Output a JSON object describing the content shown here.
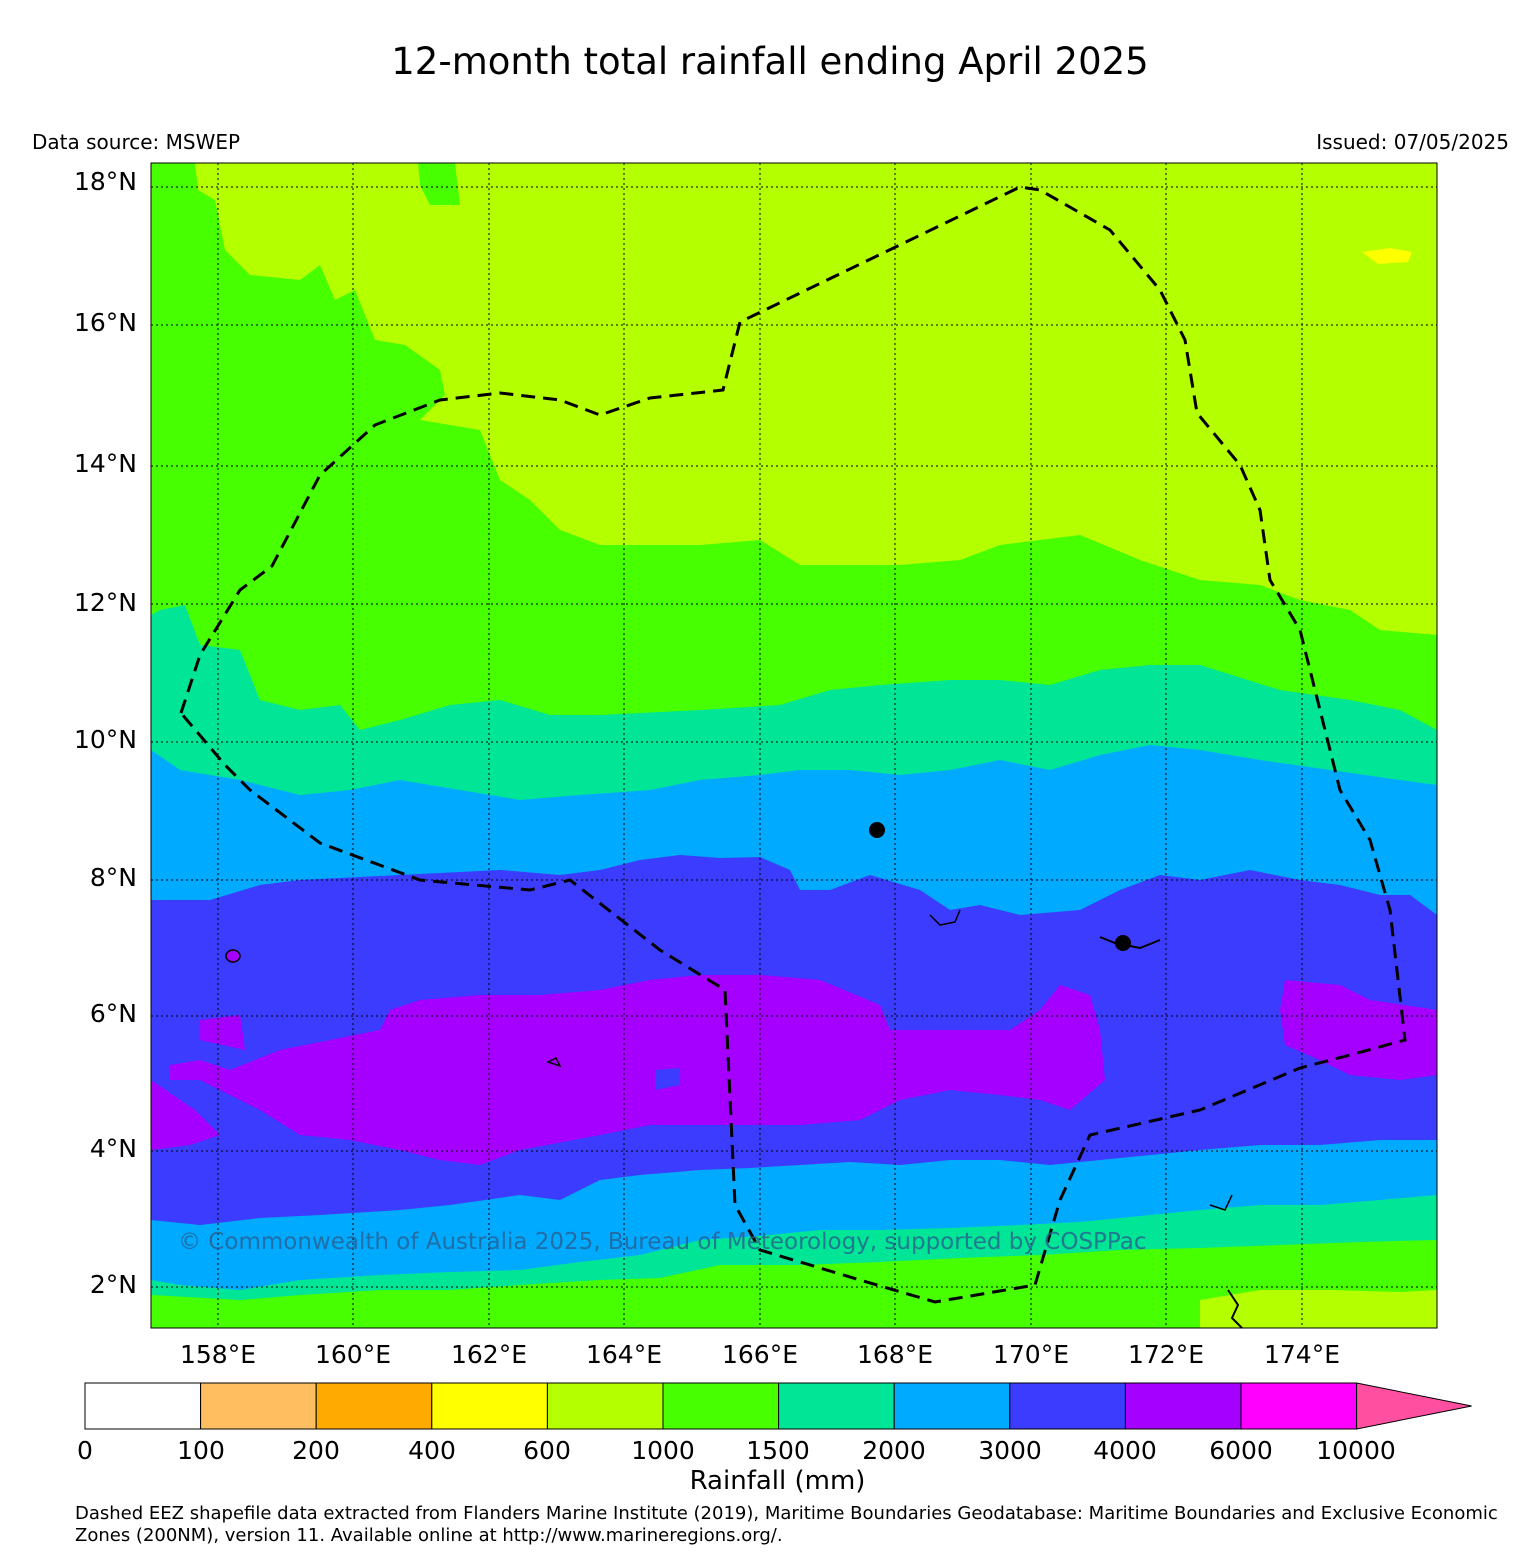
{
  "title": "12-month total rainfall ending April 2025",
  "data_source": "Data source: MSWEP",
  "issued": "Issued: 07/05/2025",
  "copyright": "© Commonwealth of Australia 2025, Bureau of Meteorology, supported by COSPPac",
  "footnote": "Dashed EEZ shapefile data extracted from Flanders Marine Institute (2019), Maritime Boundaries Geodatabase: Maritime Boundaries and Exclusive Economic Zones (200NM), version 11. Available online at http://www.marineregions.org/.",
  "map": {
    "lon_range": [
      157,
      176
    ],
    "lat_range": [
      1.4,
      18.3
    ],
    "lat_ticks": [
      "18°N",
      "16°N",
      "14°N",
      "12°N",
      "10°N",
      "8°N",
      "6°N",
      "4°N",
      "2°N"
    ],
    "lon_ticks": [
      "158°E",
      "160°E",
      "162°E",
      "164°E",
      "166°E",
      "168°E",
      "170°E",
      "172°E",
      "174°E"
    ],
    "gridlines": "dotted",
    "eez_boundary": "dashed black line",
    "islands": [
      "filled black dot near 167.7°E 8.7°N",
      "filled black dot near 171.4°E 7.1°N"
    ]
  },
  "colorbar": {
    "title": "Rainfall (mm)",
    "tick_labels": [
      "0",
      "100",
      "200",
      "400",
      "600",
      "1000",
      "1500",
      "2000",
      "3000",
      "4000",
      "6000",
      "10000"
    ],
    "colors": [
      "#ffffff",
      "#ffbf60",
      "#ffaa00",
      "#ffff00",
      "#b4ff00",
      "#48ff00",
      "#00e696",
      "#00aaff",
      "#3c3cff",
      "#a500ff",
      "#ff00ff"
    ],
    "extend_color": "#ff4fa0",
    "extend": "max"
  }
}
